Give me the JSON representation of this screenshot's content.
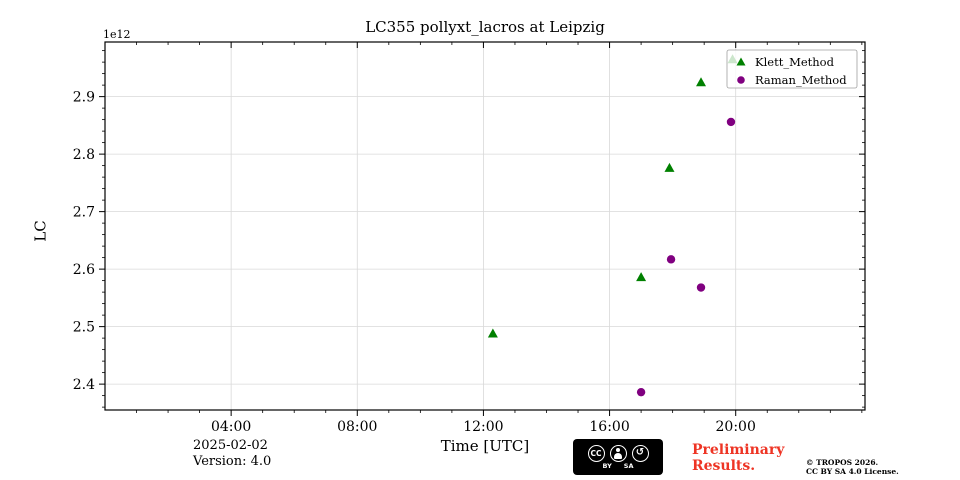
{
  "title": "LC355 pollyxt_lacros at Leipzig",
  "footer": {
    "date": "2025-02-02",
    "version": "Version: 4.0",
    "preliminary_line1": "Preliminary",
    "preliminary_line2": "Results.",
    "preliminary_color": "#ee3424",
    "copyright_line1": "© TROPOS 2026.",
    "copyright_line2": "CC BY SA 4.0 License.",
    "badge": {
      "cc": "CC",
      "by": "BY",
      "sa": "SA",
      "sa_glyph": "↺"
    }
  },
  "chart_data": {
    "type": "scatter",
    "title": "LC355 pollyxt_lacros at Leipzig",
    "xlabel": "Time [UTC]",
    "ylabel": "LC",
    "y_offset_label": "1e12",
    "grid": true,
    "xlim_hours": [
      0,
      24.1
    ],
    "ylim": [
      2.355,
      2.995
    ],
    "x_ticks": [
      "04:00",
      "08:00",
      "12:00",
      "16:00",
      "20:00"
    ],
    "x_tick_hours": [
      4,
      8,
      12,
      16,
      20
    ],
    "y_ticks": [
      2.4,
      2.5,
      2.6,
      2.7,
      2.8,
      2.9
    ],
    "legend": {
      "position": "upper right",
      "entries": [
        {
          "label": "Klett_Method",
          "marker": "triangle",
          "color": "#008000"
        },
        {
          "label": "Raman_Method",
          "marker": "circle",
          "color": "#800080"
        }
      ]
    },
    "series": [
      {
        "name": "Klett_Method",
        "marker": "triangle",
        "color": "#008000",
        "points": [
          {
            "hour": 12.3,
            "value": 2.488
          },
          {
            "hour": 17.0,
            "value": 2.586
          },
          {
            "hour": 17.9,
            "value": 2.776
          },
          {
            "hour": 18.9,
            "value": 2.925
          },
          {
            "hour": 19.9,
            "value": 2.965
          }
        ]
      },
      {
        "name": "Raman_Method",
        "marker": "circle",
        "color": "#800080",
        "points": [
          {
            "hour": 17.0,
            "value": 2.386
          },
          {
            "hour": 17.95,
            "value": 2.617
          },
          {
            "hour": 18.9,
            "value": 2.568
          },
          {
            "hour": 19.85,
            "value": 2.856
          }
        ]
      }
    ]
  }
}
